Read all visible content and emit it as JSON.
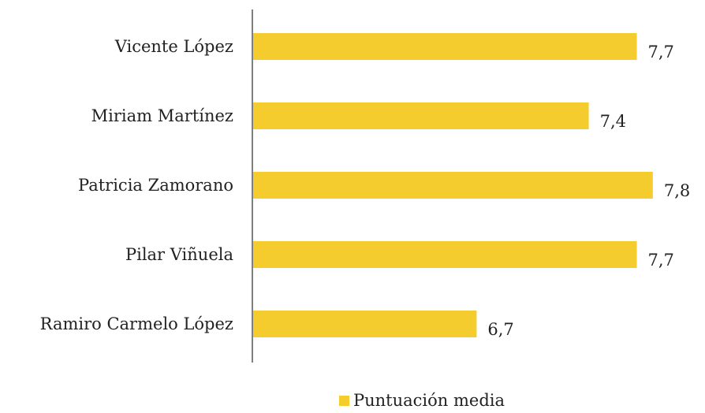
{
  "chart_data": {
    "type": "bar",
    "orientation": "horizontal",
    "categories": [
      "Vicente López",
      "Miriam Martínez",
      "Patricia Zamorano",
      "Pilar Viñuela",
      "Ramiro Carmelo López"
    ],
    "series": [
      {
        "name": "Puntuación media",
        "values": [
          7.7,
          7.4,
          7.8,
          7.7,
          6.7
        ],
        "value_labels": [
          "7,7",
          "7,4",
          "7,8",
          "7,7",
          "6,7"
        ],
        "color": "#F4CC2E"
      }
    ],
    "xlim": [
      5.3,
      7.85
    ],
    "axis_line_color": "#808080",
    "grid": false,
    "legend_position": "bottom"
  }
}
